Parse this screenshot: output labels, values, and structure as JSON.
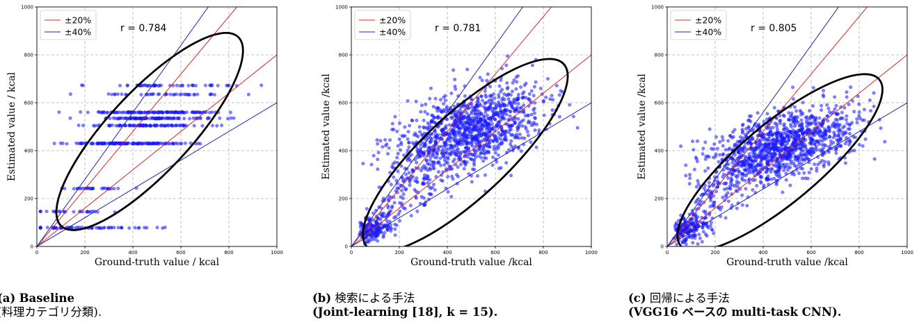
{
  "chart_data": [
    {
      "type": "scatter",
      "title": "",
      "xlabel": "Ground-truth value / kcal",
      "ylabel": "Estimated value / kcal",
      "xlim": [
        0,
        1000
      ],
      "ylim": [
        0,
        1000
      ],
      "xticks": [
        "0",
        "200",
        "400",
        "600",
        "800",
        "1000"
      ],
      "yticks": [
        "0",
        "200",
        "400",
        "600",
        "800",
        "1000"
      ],
      "grid": true,
      "legend_position": "top-left",
      "legend": [
        "±20%",
        "±40%"
      ],
      "annotation": "r = 0.784",
      "reference_lines": [
        {
          "name": "±20%",
          "color": "#d62728",
          "slopes": [
            1.2,
            0.8
          ]
        },
        {
          "name": "±40%",
          "color": "#2020b0",
          "slopes": [
            1.4,
            0.6
          ]
        }
      ],
      "point_color": "#1a1aff",
      "pattern": "quantized",
      "seed": 11,
      "ellipse": {
        "cx": 470,
        "cy": 480,
        "rx": 540,
        "ry": 170,
        "angle_deg": 47
      },
      "caption_tag": "(a)",
      "caption_line1": "Baseline",
      "caption_line2": "(料理カテゴリ分類)."
    },
    {
      "type": "scatter",
      "title": "",
      "xlabel": "Ground-truth value /kcal",
      "ylabel": "Estimated value /kcal",
      "xlim": [
        0,
        1000
      ],
      "ylim": [
        0,
        1000
      ],
      "xticks": [
        "0",
        "200",
        "400",
        "600",
        "800",
        "1000"
      ],
      "yticks": [
        "0",
        "200",
        "400",
        "600",
        "800",
        "1000"
      ],
      "grid": true,
      "legend_position": "top-left",
      "legend": [
        "±20%",
        "±40%"
      ],
      "annotation": "r = 0.781",
      "reference_lines": [
        {
          "name": "±20%",
          "color": "#d62728",
          "slopes": [
            1.2,
            0.8
          ]
        },
        {
          "name": "±40%",
          "color": "#2020b0",
          "slopes": [
            1.4,
            0.6
          ]
        }
      ],
      "point_color": "#1a1aff",
      "pattern": "continuous",
      "seed": 23,
      "cluster": {
        "mx": 490,
        "my": 480,
        "sx": 150,
        "sy": 95,
        "rho": 0.45
      },
      "ellipse": {
        "cx": 475,
        "cy": 380,
        "rx": 560,
        "ry": 175,
        "angle_deg": 43
      },
      "caption_tag": "(b)",
      "caption_line1": "検索による手法",
      "caption_line2": "(Joint-learning [18], k = 15)."
    },
    {
      "type": "scatter",
      "title": "",
      "xlabel": "Ground-truth value /kcal",
      "ylabel": "Estimated value /kcal",
      "xlim": [
        0,
        1000
      ],
      "ylim": [
        0,
        1000
      ],
      "xticks": [
        "0",
        "200",
        "400",
        "600",
        "800",
        "1000"
      ],
      "yticks": [
        "0",
        "200",
        "400",
        "600",
        "800",
        "1000"
      ],
      "grid": true,
      "legend_position": "top-left",
      "legend": [
        "±20%",
        "±40%"
      ],
      "annotation": "r = 0.805",
      "reference_lines": [
        {
          "name": "±20%",
          "color": "#d62728",
          "slopes": [
            1.2,
            0.8
          ]
        },
        {
          "name": "±40%",
          "color": "#2020b0",
          "slopes": [
            1.4,
            0.6
          ]
        }
      ],
      "point_color": "#1a1aff",
      "pattern": "continuous",
      "seed": 37,
      "cluster": {
        "mx": 480,
        "my": 420,
        "sx": 150,
        "sy": 80,
        "rho": 0.5
      },
      "ellipse": {
        "cx": 470,
        "cy": 350,
        "rx": 540,
        "ry": 165,
        "angle_deg": 40
      },
      "caption_tag": "(c)",
      "caption_line1": "回帰による手法",
      "caption_line2": "(VGG16 ベースの multi-task CNN)."
    }
  ]
}
